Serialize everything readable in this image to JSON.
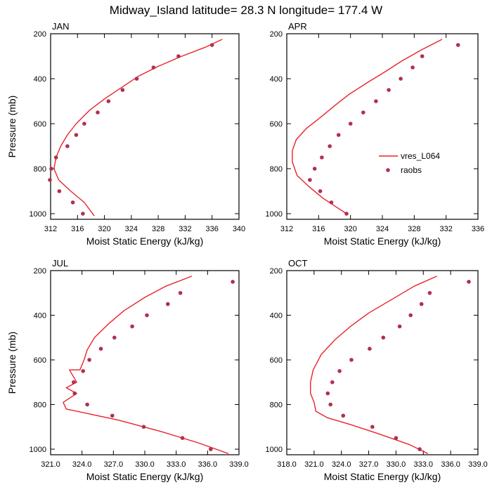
{
  "title": "Midway_Island  latitude= 28.3 N longitude= 177.4 W",
  "colors": {
    "model_line": "#e8232a",
    "obs_marker": "#b0304f",
    "frame": "#000000",
    "background": "#ffffff"
  },
  "legend": {
    "model_label": "vres_L064",
    "obs_label": "raobs"
  },
  "chart_data": [
    {
      "type": "line+scatter",
      "panel_title": "JAN",
      "xlabel": "Moist Static Energy (kJ/kg)",
      "ylabel": "Pressure (mb)",
      "xlim": [
        312,
        340
      ],
      "xticks": [
        312,
        316,
        320,
        324,
        328,
        332,
        336,
        340
      ],
      "xtick_labels": [
        "312",
        "316",
        "320",
        "324",
        "328",
        "332",
        "336",
        "340"
      ],
      "ylim": [
        1025,
        200
      ],
      "yticks": [
        200,
        400,
        600,
        800,
        1000
      ],
      "ytick_labels": [
        "200",
        "400",
        "600",
        "800",
        "1000"
      ],
      "series": [
        {
          "name": "vres_L064",
          "kind": "line",
          "x": [
            337.5,
            335.0,
            331.5,
            328.0,
            325.0,
            322.5,
            320.0,
            317.8,
            315.8,
            314.5,
            313.5,
            312.8,
            312.5,
            313.2,
            315.0,
            317.0,
            318.5
          ],
          "y": [
            225,
            260,
            300,
            345,
            390,
            440,
            490,
            540,
            600,
            650,
            700,
            750,
            800,
            850,
            900,
            950,
            1010
          ]
        },
        {
          "name": "raobs",
          "kind": "scatter",
          "x": [
            336.0,
            331.0,
            327.3,
            324.8,
            322.7,
            320.6,
            319.0,
            317.0,
            315.8,
            314.5,
            312.8,
            312.1,
            311.9,
            313.3,
            315.3,
            316.8
          ],
          "y": [
            250,
            300,
            350,
            400,
            450,
            500,
            550,
            600,
            650,
            700,
            750,
            800,
            850,
            900,
            950,
            1000
          ]
        }
      ]
    },
    {
      "type": "line+scatter",
      "panel_title": "APR",
      "xlabel": "Moist Static Energy (kJ/kg)",
      "ylabel": "",
      "xlim": [
        312,
        336
      ],
      "xticks": [
        312,
        316,
        320,
        324,
        328,
        332,
        336
      ],
      "xtick_labels": [
        "312",
        "316",
        "320",
        "324",
        "328",
        "332",
        "336"
      ],
      "ylim": [
        1025,
        200
      ],
      "yticks": [
        200,
        400,
        600,
        800,
        1000
      ],
      "ytick_labels": [
        "200",
        "400",
        "600",
        "800",
        "1000"
      ],
      "series": [
        {
          "name": "vres_L064",
          "kind": "line",
          "x": [
            331.5,
            329.0,
            326.5,
            324.3,
            322.0,
            319.8,
            318.0,
            316.3,
            314.5,
            313.2,
            312.7,
            312.7,
            313.3,
            314.8,
            316.5,
            318.2,
            319.5
          ],
          "y": [
            225,
            270,
            320,
            370,
            420,
            470,
            520,
            570,
            620,
            670,
            720,
            770,
            830,
            880,
            930,
            970,
            1000
          ]
        },
        {
          "name": "raobs",
          "kind": "scatter",
          "x": [
            333.5,
            329.0,
            327.8,
            326.3,
            324.8,
            323.2,
            321.6,
            320.0,
            318.5,
            317.4,
            316.4,
            315.5,
            314.9,
            316.2,
            317.6,
            319.5
          ],
          "y": [
            250,
            300,
            350,
            400,
            450,
            500,
            550,
            600,
            650,
            700,
            750,
            800,
            850,
            900,
            950,
            1000
          ]
        }
      ]
    },
    {
      "type": "line+scatter",
      "panel_title": "JUL",
      "xlabel": "Moist Static Energy (kJ/kg)",
      "ylabel": "Pressure (mb)",
      "xlim": [
        321,
        339
      ],
      "xticks": [
        321,
        324,
        327,
        330,
        333,
        336,
        339
      ],
      "xtick_labels": [
        "321.0",
        "324.0",
        "327.0",
        "330.0",
        "333.0",
        "336.0",
        "339.0"
      ],
      "ylim": [
        1025,
        200
      ],
      "yticks": [
        200,
        400,
        600,
        800,
        1000
      ],
      "ytick_labels": [
        "200",
        "400",
        "600",
        "800",
        "1000"
      ],
      "series": [
        {
          "name": "vres_L064",
          "kind": "line",
          "x": [
            334.5,
            332.0,
            330.0,
            328.0,
            326.5,
            325.2,
            324.5,
            324.2,
            323.8,
            322.8,
            323.5,
            322.5,
            323.5,
            322.2,
            322.5,
            327.5,
            331.5,
            335.0,
            338.0
          ],
          "y": [
            225,
            270,
            320,
            380,
            440,
            500,
            555,
            600,
            645,
            645,
            700,
            725,
            750,
            790,
            820,
            870,
            920,
            970,
            1020
          ]
        },
        {
          "name": "raobs",
          "kind": "scatter",
          "x": [
            338.4,
            333.4,
            332.2,
            330.2,
            328.8,
            327.1,
            325.8,
            324.7,
            324.1,
            323.2,
            323.3,
            324.5,
            326.9,
            329.9,
            333.6,
            336.3
          ],
          "y": [
            250,
            300,
            350,
            400,
            450,
            500,
            550,
            600,
            650,
            700,
            750,
            800,
            850,
            900,
            950,
            1000
          ]
        }
      ]
    },
    {
      "type": "line+scatter",
      "panel_title": "OCT",
      "xlabel": "Moist Static Energy (kJ/kg)",
      "ylabel": "",
      "xlim": [
        318,
        339
      ],
      "xticks": [
        318,
        321,
        324,
        327,
        330,
        333,
        336,
        339
      ],
      "xtick_labels": [
        "318.0",
        "321.0",
        "324.0",
        "327.0",
        "330.0",
        "333.0",
        "336.0",
        "339.0"
      ],
      "ylim": [
        1025,
        200
      ],
      "yticks": [
        200,
        400,
        600,
        800,
        1000
      ],
      "ytick_labels": [
        "200",
        "400",
        "600",
        "800",
        "1000"
      ],
      "series": [
        {
          "name": "vres_L064",
          "kind": "line",
          "x": [
            334.5,
            332.0,
            329.5,
            327.0,
            325.0,
            323.3,
            321.8,
            320.9,
            320.6,
            320.6,
            321.0,
            321.2,
            322.5,
            325.0,
            328.0,
            331.5,
            333.5
          ],
          "y": [
            225,
            270,
            330,
            390,
            450,
            510,
            575,
            645,
            700,
            750,
            790,
            830,
            860,
            890,
            930,
            980,
            1020
          ]
        },
        {
          "name": "raobs",
          "kind": "scatter",
          "x": [
            338.0,
            333.7,
            332.8,
            331.6,
            330.4,
            328.6,
            327.1,
            325.1,
            323.8,
            323.0,
            322.5,
            322.8,
            324.2,
            327.4,
            330.0,
            332.6
          ],
          "y": [
            250,
            300,
            350,
            400,
            450,
            500,
            550,
            600,
            650,
            700,
            750,
            800,
            850,
            900,
            950,
            1000
          ]
        }
      ]
    }
  ]
}
